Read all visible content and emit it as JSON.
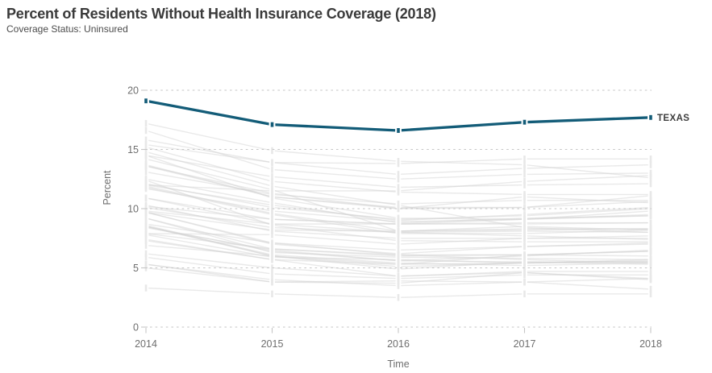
{
  "header": {
    "title": "Percent of Residents Without Health Insurance Coverage (2018)",
    "subtitle": "Coverage Status: Uninsured"
  },
  "chart_data": {
    "type": "line",
    "title": "Percent of Residents Without Health Insurance Coverage (2018)",
    "subtitle": "Coverage Status: Uninsured",
    "x": [
      2014,
      2015,
      2016,
      2017,
      2018
    ],
    "xlabel": "Time",
    "ylabel": "Percent",
    "ylim": [
      0,
      20
    ],
    "y_ticks": [
      0,
      5,
      10,
      15,
      20
    ],
    "grid": "horizontal-dashed",
    "legend_position": "end-of-line-label",
    "highlight_series": {
      "name": "TEXAS",
      "color": "#135c78",
      "values": [
        19.1,
        17.1,
        16.6,
        17.3,
        17.7
      ]
    },
    "background_series": [
      [
        12.1,
        10.1,
        9.1,
        9.4,
        10.0
      ],
      [
        17.2,
        14.9,
        14.0,
        13.7,
        12.6
      ],
      [
        13.6,
        11.0,
        10.0,
        10.1,
        10.6
      ],
      [
        11.8,
        9.5,
        7.9,
        7.9,
        8.2
      ],
      [
        12.4,
        8.6,
        7.3,
        7.2,
        7.2
      ],
      [
        10.3,
        8.1,
        7.5,
        7.5,
        7.5
      ],
      [
        6.9,
        6.0,
        4.9,
        5.5,
        5.3
      ],
      [
        7.8,
        5.9,
        5.7,
        5.4,
        5.7
      ],
      [
        5.3,
        3.8,
        3.9,
        3.8,
        3.2
      ],
      [
        16.6,
        13.3,
        12.5,
        12.9,
        13.0
      ],
      [
        15.8,
        13.9,
        12.9,
        13.4,
        13.7
      ],
      [
        5.3,
        4.0,
        3.5,
        3.8,
        4.1
      ],
      [
        13.7,
        11.0,
        10.1,
        10.1,
        11.1
      ],
      [
        9.7,
        7.1,
        6.5,
        6.8,
        7.0
      ],
      [
        11.9,
        9.6,
        8.1,
        8.2,
        8.3
      ],
      [
        6.2,
        5.0,
        4.3,
        4.7,
        4.7
      ],
      [
        10.2,
        9.1,
        8.7,
        8.7,
        8.8
      ],
      [
        8.5,
        6.0,
        5.1,
        5.4,
        5.6
      ],
      [
        14.8,
        11.9,
        10.3,
        8.4,
        8.0
      ],
      [
        10.1,
        8.4,
        8.0,
        8.1,
        8.0
      ],
      [
        7.9,
        6.6,
        6.1,
        6.1,
        6.0
      ],
      [
        3.3,
        2.8,
        2.5,
        2.8,
        2.8
      ],
      [
        8.5,
        6.1,
        5.4,
        5.2,
        5.4
      ],
      [
        5.9,
        4.5,
        4.1,
        4.4,
        4.4
      ],
      [
        14.5,
        12.7,
        11.8,
        12.0,
        12.1
      ],
      [
        11.7,
        9.8,
        8.9,
        9.1,
        9.4
      ],
      [
        14.2,
        11.6,
        8.1,
        8.5,
        8.2
      ],
      [
        9.7,
        8.2,
        8.1,
        8.3,
        8.3
      ],
      [
        15.2,
        12.3,
        11.4,
        11.2,
        11.2
      ],
      [
        9.2,
        6.3,
        5.9,
        5.8,
        5.7
      ],
      [
        10.9,
        8.7,
        8.0,
        7.7,
        7.4
      ],
      [
        14.5,
        10.9,
        9.2,
        9.1,
        9.5
      ],
      [
        8.7,
        7.1,
        6.1,
        5.7,
        5.4
      ],
      [
        13.1,
        11.2,
        10.4,
        10.7,
        10.7
      ],
      [
        7.9,
        7.8,
        7.0,
        7.5,
        7.7
      ],
      [
        8.4,
        6.5,
        5.6,
        6.0,
        6.5
      ],
      [
        15.4,
        13.9,
        13.8,
        14.2,
        14.2
      ],
      [
        9.7,
        7.0,
        6.2,
        6.8,
        7.1
      ],
      [
        8.5,
        6.4,
        5.6,
        5.5,
        5.5
      ],
      [
        7.4,
        5.7,
        4.3,
        4.6,
        4.1
      ],
      [
        13.6,
        11.3,
        10.0,
        11.0,
        10.5
      ],
      [
        9.8,
        8.7,
        8.7,
        9.1,
        9.8
      ],
      [
        12.0,
        10.3,
        9.0,
        9.5,
        10.1
      ],
      [
        12.5,
        10.5,
        8.8,
        9.2,
        9.4
      ],
      [
        5.0,
        3.8,
        3.7,
        4.6,
        4.0
      ],
      [
        10.9,
        9.1,
        8.7,
        8.8,
        8.8
      ],
      [
        9.2,
        6.6,
        6.0,
        6.1,
        6.4
      ],
      [
        8.6,
        6.0,
        5.3,
        6.1,
        6.4
      ],
      [
        7.3,
        5.7,
        5.3,
        5.4,
        5.5
      ],
      [
        12.0,
        11.5,
        11.5,
        12.3,
        12.8
      ]
    ],
    "style": {
      "background_line_color": "#d4d4d4",
      "background_marker_color": "#e8e8e8",
      "grid_color": "#c6c6c6",
      "tick_text_color": "#6e6e6e",
      "series_label_color": "#3d3d3d",
      "title_color": "#3a3a3a",
      "subtitle_color": "#4b4b4b"
    }
  }
}
